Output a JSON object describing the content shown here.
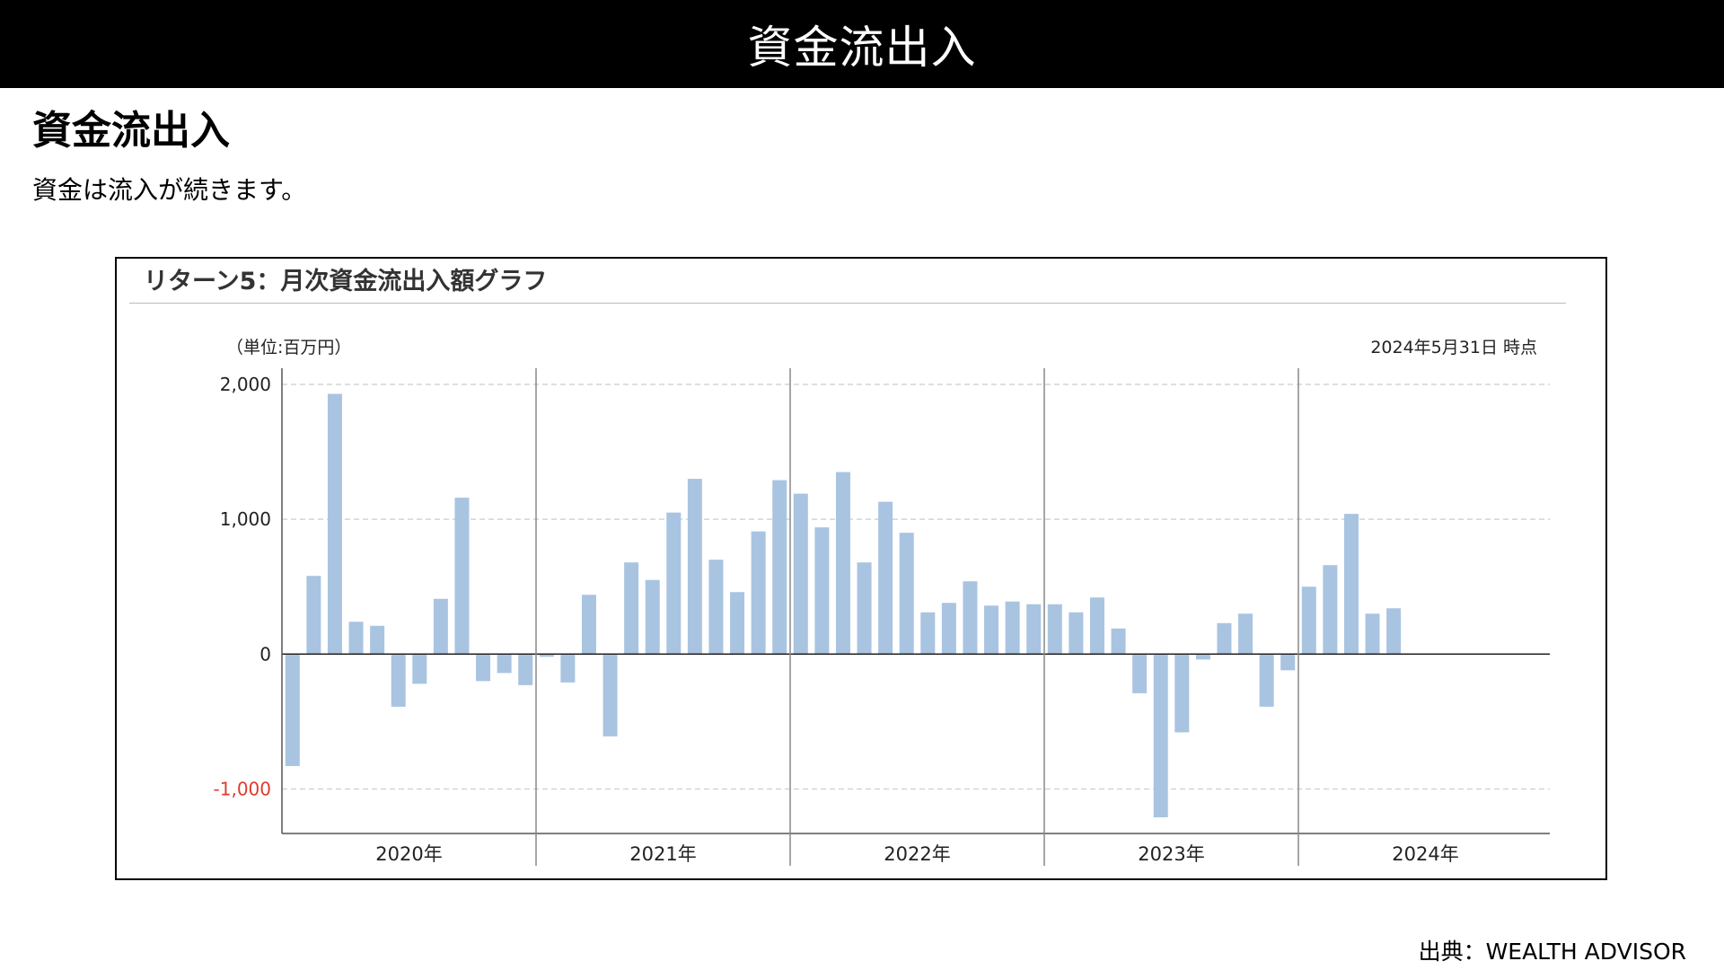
{
  "header": {
    "banner_title": "資金流出入",
    "heading": "資金流出入",
    "description": "資金は流入が続きます。"
  },
  "chart_box": {
    "title": "リターン5：月次資金流出入額グラフ",
    "unit": "（単位:百万円）",
    "as_of": "2024年5月31日 時点"
  },
  "footer": {
    "source": "出典：WEALTH ADVISOR"
  },
  "colors": {
    "bar": "#a9c4e1",
    "negative_tick": "#e03a2f",
    "grid": "#cccccc",
    "axis": "#555555"
  },
  "chart_data": {
    "type": "bar",
    "title": "リターン5：月次資金流出入額グラフ",
    "ylabel": "（単位:百万円）",
    "ylim": [
      -1330,
      2120
    ],
    "yticks": [
      2000,
      1000,
      0,
      -1000
    ],
    "ytick_labels": [
      "2,000",
      "1,000",
      "0",
      "-1,000"
    ],
    "grid": true,
    "year_groups": [
      "2020年",
      "2021年",
      "2022年",
      "2023年",
      "2024年"
    ],
    "series": [
      {
        "values": [
          -830,
          580,
          1930,
          240,
          210,
          -390,
          -220,
          410,
          1160,
          -200,
          -140,
          -230,
          -20,
          -210,
          440,
          -610,
          680,
          550,
          1050,
          1300,
          700,
          460,
          910,
          1290,
          1190,
          940,
          1350,
          680,
          1130,
          900,
          310,
          380,
          540,
          360,
          390,
          370,
          370,
          310,
          420,
          190,
          -290,
          -1210,
          -580,
          -40,
          230,
          300,
          -390,
          -120,
          500,
          660,
          1040,
          300,
          340
        ]
      }
    ]
  }
}
